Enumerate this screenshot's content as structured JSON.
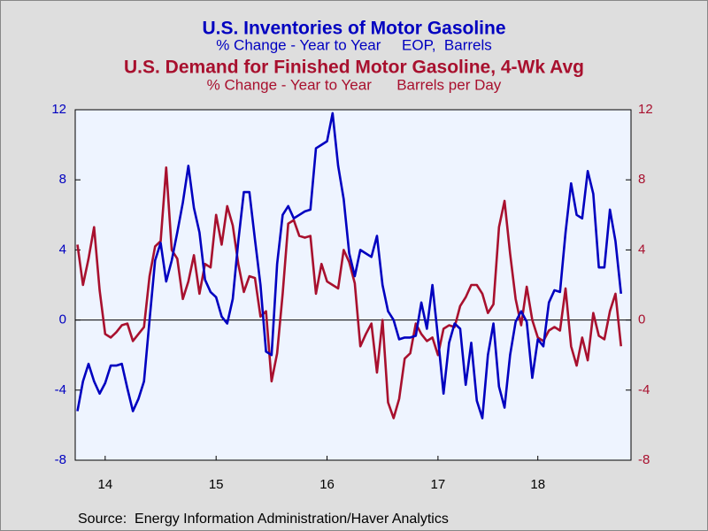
{
  "chart_data": {
    "type": "line",
    "series": [
      {
        "name": "U.S. Inventories of Motor Gasoline",
        "subtitle": "% Change - Year to Year     EOP,  Barrels",
        "color": "#0000c0",
        "axis": "y",
        "values": [
          -5.2,
          -3.5,
          -2.5,
          -3.5,
          -4.2,
          -3.6,
          -2.6,
          -2.6,
          -2.5,
          -3.9,
          -5.2,
          -4.5,
          -3.5,
          0,
          3.4,
          4.4,
          2.2,
          3.4,
          5,
          6.7,
          8.8,
          6.4,
          5,
          2.3,
          1.6,
          1.3,
          0.2,
          -0.2,
          1.2,
          4.5,
          7.3,
          7.3,
          4.6,
          2,
          -1.8,
          -2,
          3.2,
          6,
          6.5,
          5.8,
          6,
          6.2,
          6.3,
          9.8,
          10,
          10.2,
          11.8,
          8.8,
          6.9,
          3.8,
          2.5,
          4,
          3.8,
          3.6,
          4.8,
          2,
          0.5,
          0,
          -1.1,
          -1,
          -1,
          -0.9,
          1,
          -0.5,
          2,
          -1,
          -4.2,
          -1.3,
          -0.2,
          -0.5,
          -3.7,
          -1.3,
          -4.6,
          -5.6,
          -2,
          -0.2,
          -3.8,
          -5,
          -2,
          -0.1,
          0.5,
          -0.1,
          -3.3,
          -1.1,
          -1.5,
          1,
          1.7,
          1.6,
          5,
          7.8,
          6,
          5.8,
          8.5,
          7.2,
          3,
          3,
          6.3,
          4.5,
          1.5
        ]
      },
      {
        "name": "U.S. Demand for Finished Motor Gasoline, 4-Wk Avg",
        "subtitle": "% Change - Year to Year      Barrels per Day",
        "color": "#a8102e",
        "axis": "y2",
        "values": [
          4.3,
          2,
          3.5,
          5.3,
          1.7,
          -0.8,
          -1,
          -0.7,
          -0.3,
          -0.2,
          -1.2,
          -0.8,
          -0.4,
          2.5,
          4.2,
          4.5,
          8.7,
          4,
          3.5,
          1.2,
          2.2,
          3.7,
          1.5,
          3.2,
          3,
          6,
          4.3,
          6.5,
          5.4,
          3.2,
          1.6,
          2.5,
          2.4,
          0.2,
          0.5,
          -3.5,
          -1.9,
          1.5,
          5.5,
          5.7,
          4.8,
          4.7,
          4.8,
          1.5,
          3.2,
          2.2,
          2,
          1.8,
          4,
          3.3,
          2.1,
          -1.5,
          -0.8,
          -0.2,
          -3,
          0,
          -4.7,
          -5.6,
          -4.5,
          -2.2,
          -1.9,
          -0.2,
          -0.8,
          -1.2,
          -1,
          -2,
          -0.5,
          -0.3,
          -0.4,
          0.8,
          1.3,
          2,
          2,
          1.5,
          0.4,
          0.9,
          5.3,
          6.8,
          3.8,
          1.2,
          -0.3,
          1.9,
          0,
          -1,
          -1.2,
          -0.6,
          -0.4,
          -0.6,
          1.8,
          -1.5,
          -2.6,
          -1,
          -2.3,
          0.4,
          -0.9,
          -1.1,
          0.5,
          1.5,
          -1.5
        ]
      }
    ],
    "x": [
      2014.25,
      2014.3,
      2014.35,
      2014.4,
      2014.45,
      2014.5,
      2014.55,
      2014.6,
      2014.65,
      2014.7,
      2014.75,
      2014.8,
      2014.85,
      2014.9,
      2014.95,
      2015,
      2015.05,
      2015.1,
      2015.15,
      2015.2,
      2015.25,
      2015.3,
      2015.35,
      2015.4,
      2015.45,
      2015.5,
      2015.55,
      2015.6,
      2015.65,
      2015.7,
      2015.75,
      2015.8,
      2015.85,
      2015.9,
      2015.95,
      2016,
      2016.05,
      2016.1,
      2016.15,
      2016.2,
      2016.25,
      2016.3,
      2016.35,
      2016.4,
      2016.45,
      2016.5,
      2016.55,
      2016.6,
      2016.65,
      2016.7,
      2016.75,
      2016.8,
      2016.85,
      2016.9,
      2016.95,
      2017,
      2017.05,
      2017.1,
      2017.15,
      2017.2,
      2017.25,
      2017.3,
      2017.35,
      2017.4,
      2017.45,
      2017.5,
      2017.55,
      2017.6,
      2017.65,
      2017.7,
      2017.75,
      2017.8,
      2017.85,
      2017.9,
      2017.95,
      2018,
      2018.05,
      2018.1,
      2018.15,
      2018.2,
      2018.25,
      2018.3,
      2018.35,
      2018.4,
      2018.45,
      2018.5,
      2018.55,
      2018.6,
      2018.65,
      2018.7,
      2018.75,
      2018.8,
      2018.85,
      2018.9,
      2018.95,
      2019,
      2019.05,
      2019.1,
      2019.15
    ],
    "xlim": [
      2014.23,
      2019.24
    ],
    "xticks": [
      {
        "value": 2014.5,
        "label": "14"
      },
      {
        "value": 2015.5,
        "label": "15"
      },
      {
        "value": 2016.5,
        "label": "16"
      },
      {
        "value": 2017.5,
        "label": "17"
      },
      {
        "value": 2018.4,
        "label": "18"
      }
    ],
    "ylim": [
      -8,
      12
    ],
    "yticks": [
      -8,
      -4,
      0,
      4,
      8,
      12
    ],
    "y2lim": [
      -8,
      12
    ],
    "y2ticks": [
      -8,
      -4,
      0,
      4,
      8,
      12
    ],
    "source": "Source:  Energy Information Administration/Haver Analytics"
  }
}
